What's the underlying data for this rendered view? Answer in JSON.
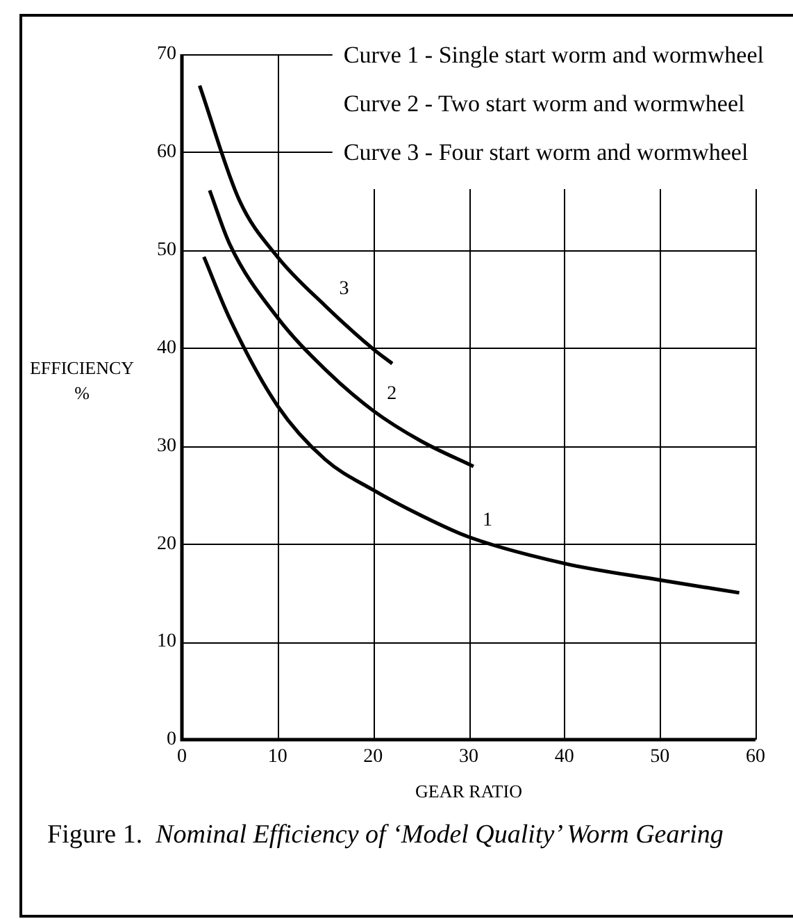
{
  "chart_data": {
    "type": "line",
    "title": "Figure 1. Nominal Efficiency of ‘Model Quality’ Worm Gearing",
    "xlabel": "GEAR RATIO",
    "ylabel": "EFFICIENCY %",
    "series": [
      {
        "name": "1",
        "color": "#000000",
        "x": [
          2.3,
          5,
          10,
          15,
          20,
          25,
          30,
          40,
          50,
          58.3
        ],
        "values": [
          49.3,
          43,
          34.1,
          28.6,
          25.5,
          22.9,
          20.7,
          18,
          16.3,
          15
        ]
      },
      {
        "name": "2",
        "color": "#000000",
        "x": [
          2.9,
          5,
          10,
          15,
          20,
          25,
          30.5
        ],
        "values": [
          56.1,
          50.6,
          43.1,
          37.8,
          33.6,
          30.5,
          27.9
        ]
      },
      {
        "name": "3",
        "color": "#000000",
        "x": [
          1.85,
          6,
          10,
          15,
          20,
          22
        ],
        "values": [
          66.8,
          55.1,
          49.3,
          44.3,
          39.9,
          38.4
        ]
      }
    ],
    "annotations": [
      "Curve 1 - Single start worm and wormwheel",
      "Curve 2 - Two start worm and wormwheel",
      "Curve 3 - Four start worm and wormwheel"
    ],
    "xlim": [
      0,
      60
    ],
    "xticks": [
      0,
      10,
      20,
      30,
      40,
      50,
      60
    ],
    "ylim": [
      0,
      70
    ],
    "yticks": [
      0,
      10,
      20,
      30,
      40,
      50,
      60,
      70
    ],
    "grid": true,
    "marker": "none",
    "line_style": "solid"
  }
}
